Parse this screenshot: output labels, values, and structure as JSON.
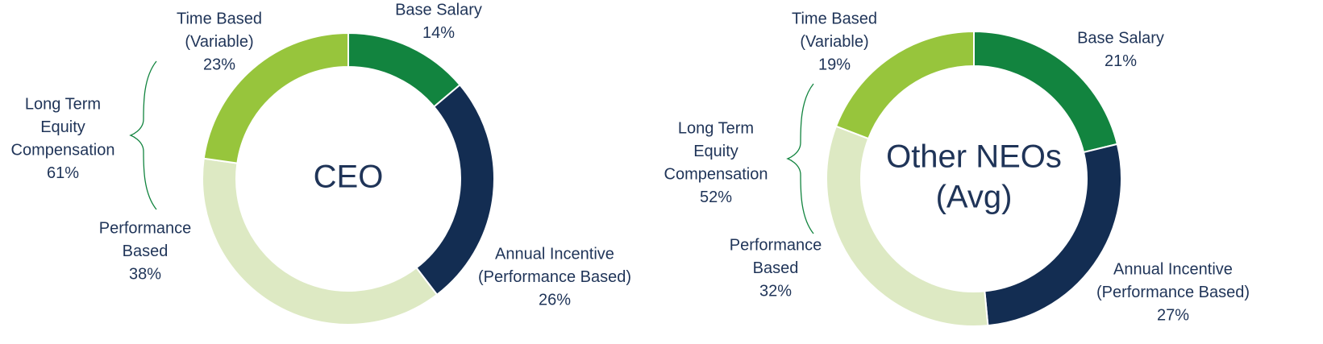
{
  "chart_data": [
    {
      "type": "pie",
      "center_label": [
        "CEO"
      ],
      "categories": [
        [
          "Base Salary"
        ],
        [
          "Annual Incentive",
          "(Performance Based)"
        ],
        [
          "Performance",
          "Based"
        ],
        [
          "Time Based",
          "(Variable)"
        ]
      ],
      "values": [
        14,
        26,
        38,
        23
      ],
      "value_labels": [
        "14%",
        "26%",
        "38%",
        "23%"
      ],
      "colors": [
        "#12843f",
        "#132d52",
        "#dde9c3",
        "#97c53c"
      ],
      "bracket": {
        "text": [
          "Long Term",
          "Equity",
          "Compensation"
        ],
        "value": 61,
        "value_label": "61%"
      }
    },
    {
      "type": "pie",
      "center_label": [
        "Other NEOs",
        "(Avg)"
      ],
      "categories": [
        [
          "Base Salary"
        ],
        [
          "Annual Incentive",
          "(Performance Based)"
        ],
        [
          "Performance",
          "Based"
        ],
        [
          "Time Based",
          "(Variable)"
        ]
      ],
      "values": [
        21,
        27,
        32,
        19
      ],
      "value_labels": [
        "21%",
        "27%",
        "32%",
        "19%"
      ],
      "colors": [
        "#12843f",
        "#132d52",
        "#dde9c3",
        "#97c53c"
      ],
      "bracket": {
        "text": [
          "Long Term",
          "Equity",
          "Compensation"
        ],
        "value": 52,
        "value_label": "52%"
      }
    }
  ]
}
